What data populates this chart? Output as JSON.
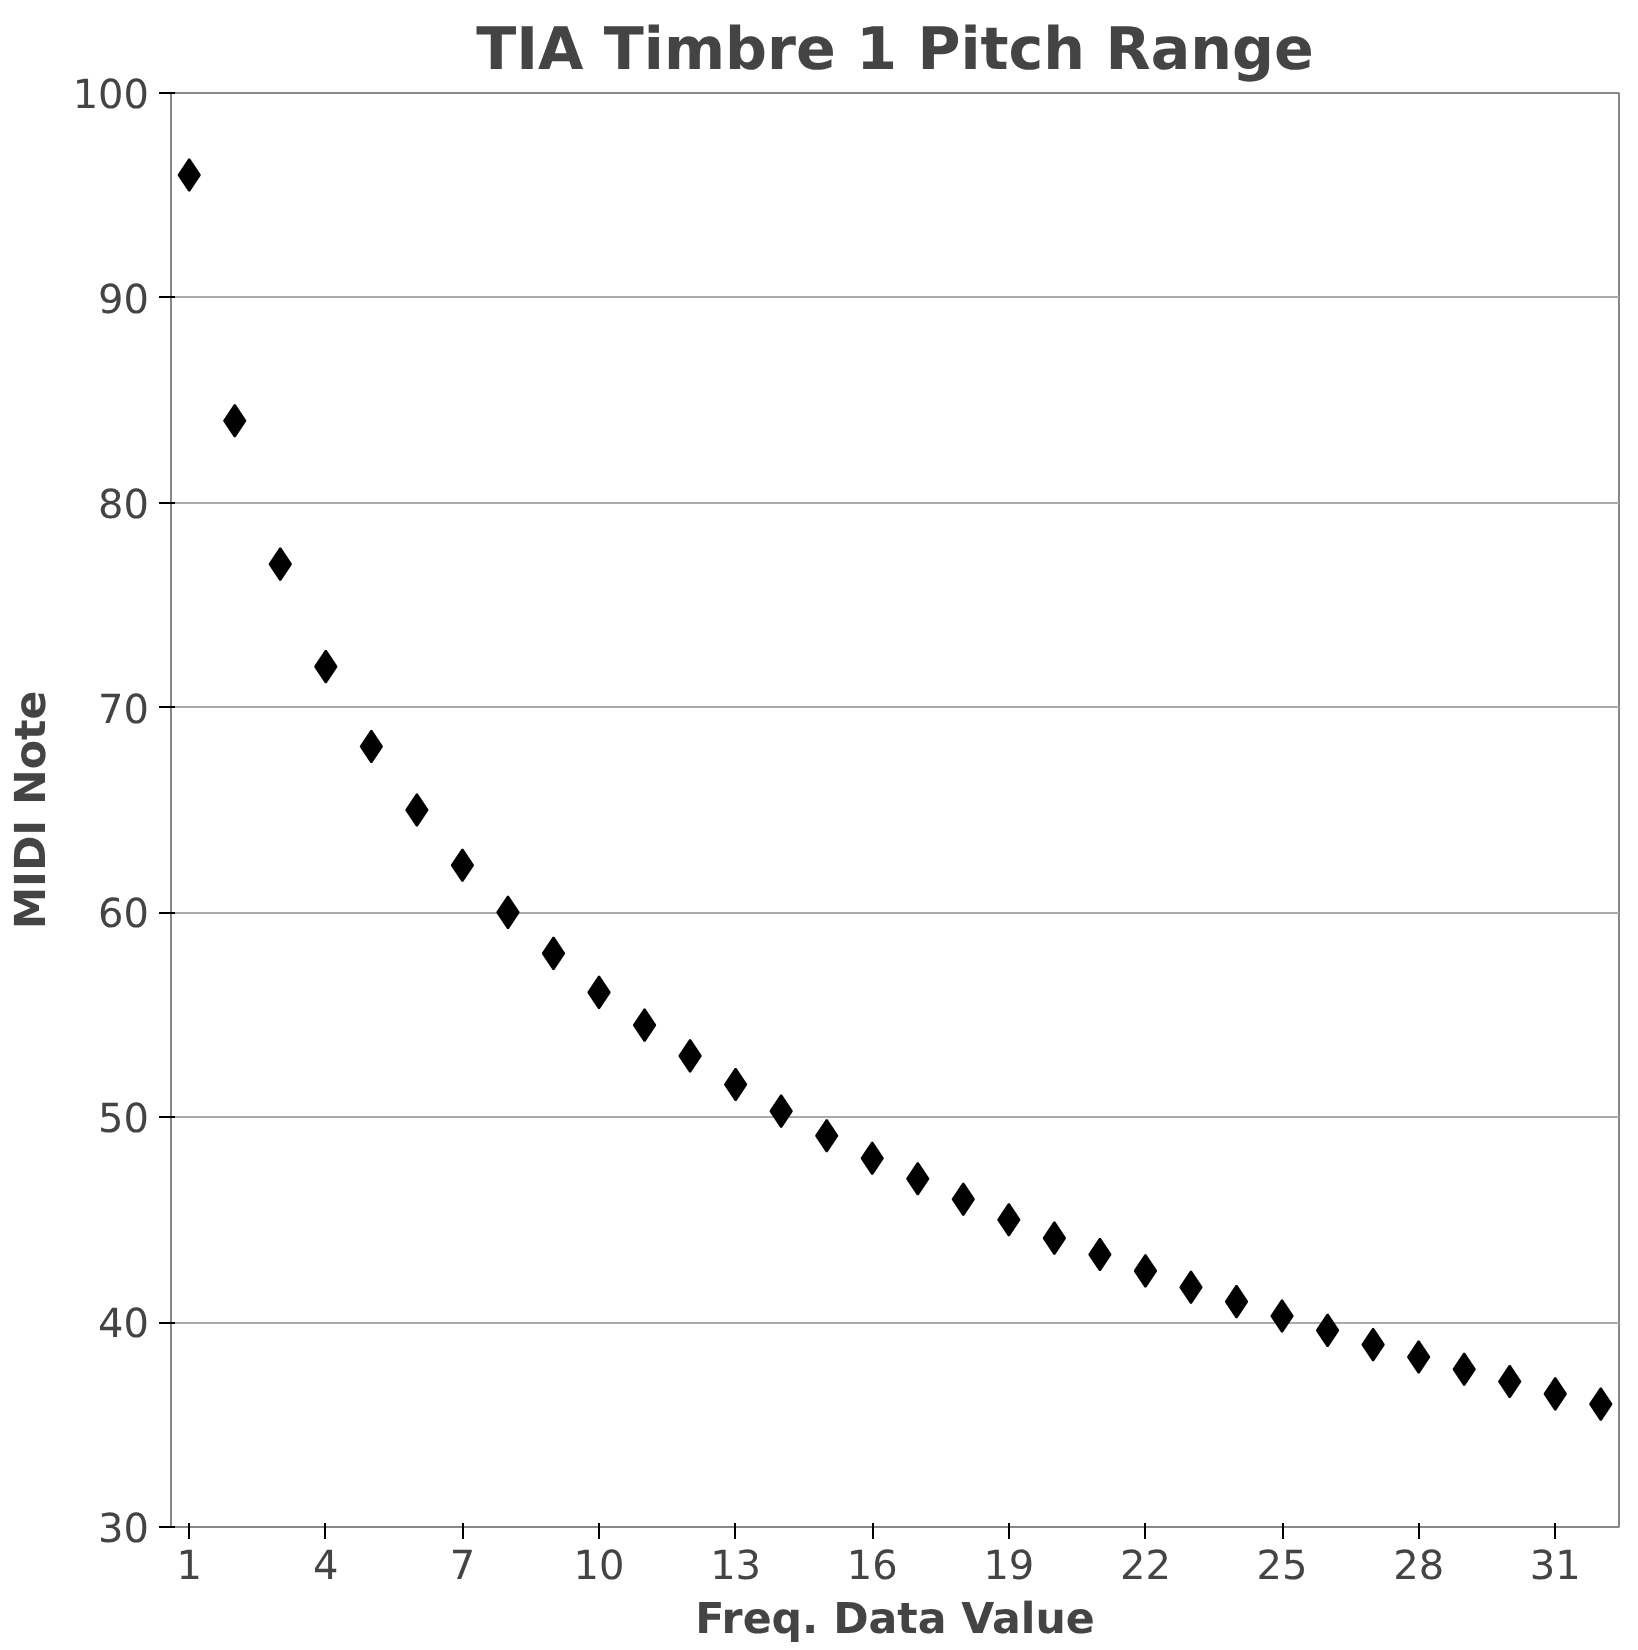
{
  "chart_data": {
    "type": "scatter",
    "title": "TIA Timbre 1 Pitch Range",
    "xlabel": "Freq. Data Value",
    "ylabel": "MIDI Note",
    "x": [
      1,
      2,
      3,
      4,
      5,
      6,
      7,
      8,
      9,
      10,
      11,
      12,
      13,
      14,
      15,
      16,
      17,
      18,
      19,
      20,
      21,
      22,
      23,
      24,
      25,
      26,
      27,
      28,
      29,
      30,
      31,
      32
    ],
    "series": [
      {
        "color": "#000000",
        "values": [
          96,
          84,
          77,
          72,
          68.1,
          65,
          62.3,
          60,
          58,
          56.1,
          54.5,
          53,
          51.6,
          50.3,
          49.1,
          48,
          47,
          46,
          45,
          44.1,
          43.3,
          42.5,
          41.7,
          41,
          40.3,
          39.6,
          38.9,
          38.3,
          37.7,
          37.1,
          36.5,
          36
        ]
      }
    ],
    "xlim": [
      0.6,
      32.4
    ],
    "xticks": [
      1,
      4,
      7,
      10,
      13,
      16,
      19,
      22,
      25,
      28,
      31
    ],
    "ylim": [
      30,
      100
    ],
    "yticks": [
      30,
      40,
      50,
      60,
      70,
      80,
      90,
      100
    ],
    "grid": "y",
    "marker": "diamond"
  }
}
